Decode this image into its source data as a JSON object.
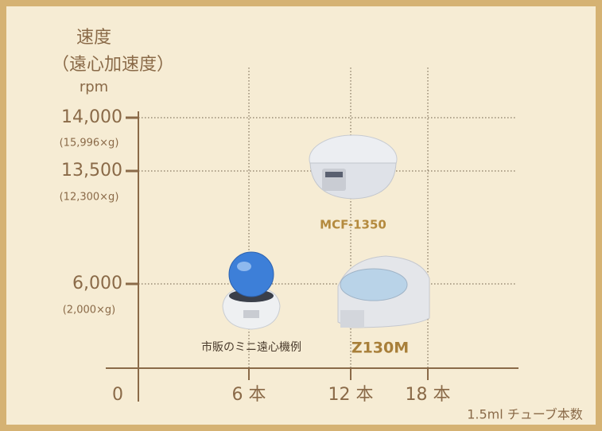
{
  "y_axis": {
    "title": "速度",
    "subtitle": "（遠心加速度）",
    "unit": "rpm",
    "ticks": [
      {
        "label": "14,000",
        "note": "(15,996×g)"
      },
      {
        "label": "13,500",
        "note": "(12,300×g)"
      },
      {
        "label": "6,000",
        "note": "(2,000×g)"
      }
    ]
  },
  "x_axis": {
    "origin": "0",
    "ticks": [
      "6 本",
      "12 本",
      "18 本"
    ],
    "title": "1.5ml チューブ本数"
  },
  "products": [
    {
      "label": "MCF-1350"
    },
    {
      "label": "Z130M"
    },
    {
      "label": "市販のミニ遠心機例"
    }
  ]
}
